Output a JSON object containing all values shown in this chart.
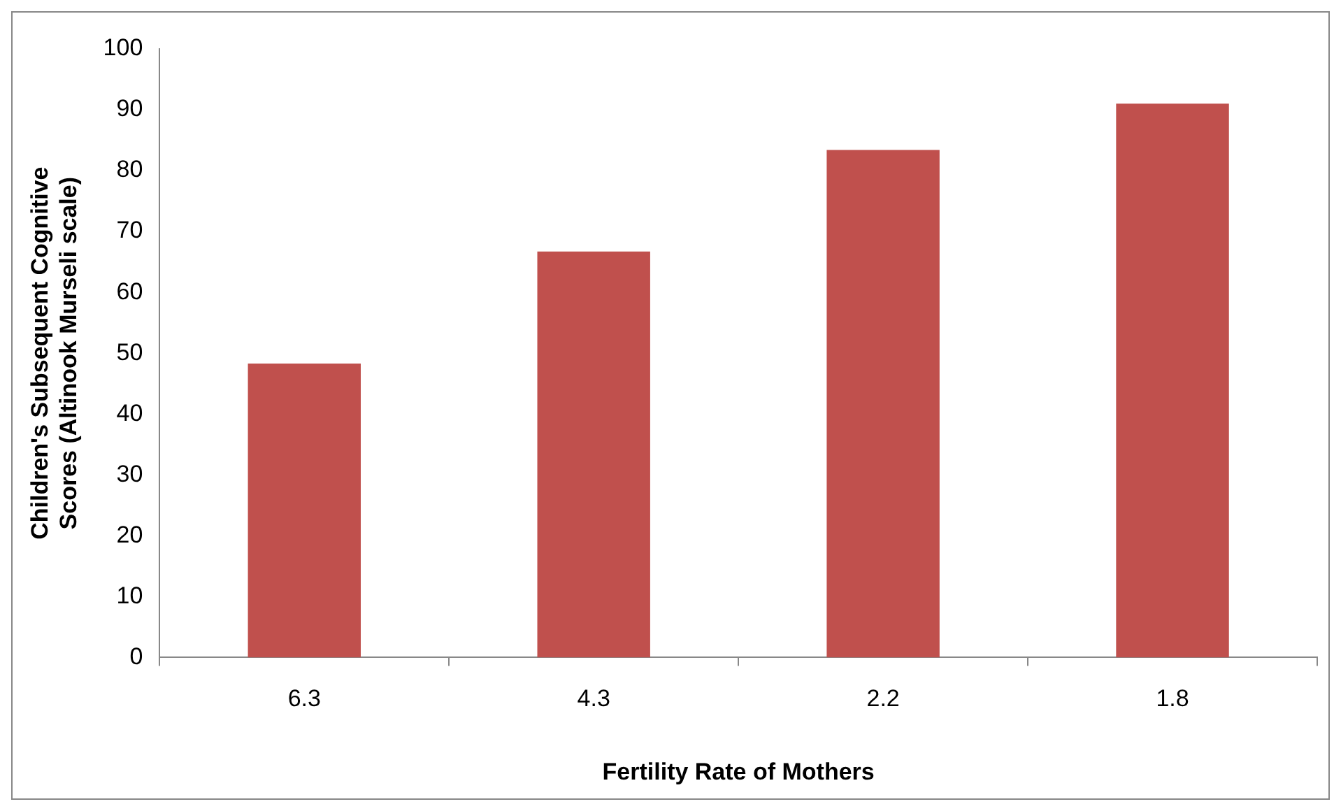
{
  "chart_data": {
    "type": "bar",
    "xlabel": "Fertility Rate of Mothers",
    "ylabel": "Children's Subsequent Cognitive Scores (Altinook Murseli scale)",
    "categories": [
      "6.3",
      "4.3",
      "2.2",
      "1.8"
    ],
    "values": [
      48.3,
      66.7,
      83.4,
      91
    ],
    "color": "#c0504d",
    "ylim": [
      0,
      100
    ],
    "yticks": [
      0,
      10,
      20,
      30,
      40,
      50,
      60,
      70,
      80,
      90,
      100
    ],
    "grid": false,
    "legend": false
  }
}
